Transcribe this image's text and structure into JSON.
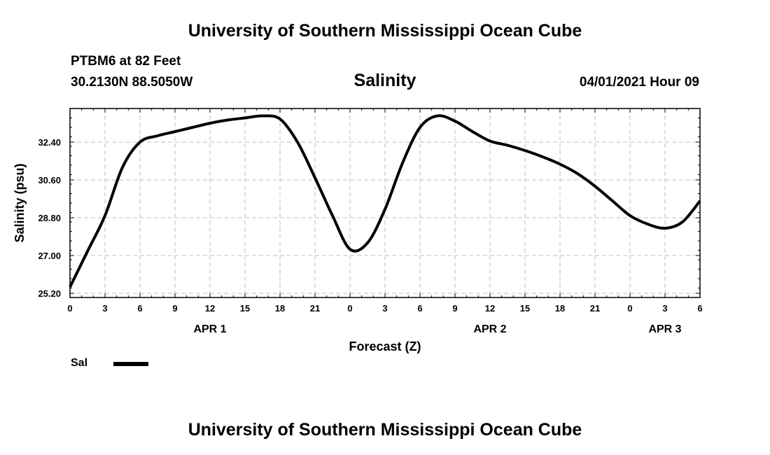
{
  "header": {
    "title": "University of Southern Mississippi Ocean Cube",
    "station": "PTBM6 at 82 Feet",
    "coords": "30.2130N  88.5050W",
    "chart_title": "Salinity",
    "timestamp": "04/01/2021 Hour 09"
  },
  "footer": {
    "title": "University of Southern Mississippi Ocean Cube"
  },
  "legend": {
    "label": "Sal",
    "color": "#000000"
  },
  "chart_data": {
    "type": "line",
    "title": "Salinity",
    "xlabel": "Forecast (Z)",
    "ylabel": "Salinity (psu)",
    "xlim": [
      0,
      54
    ],
    "ylim": [
      25.0,
      34.0
    ],
    "grid": true,
    "legend_position": "bottom-left",
    "x_ticks": [
      {
        "x": 0,
        "label": "0"
      },
      {
        "x": 3,
        "label": "3"
      },
      {
        "x": 6,
        "label": "6"
      },
      {
        "x": 9,
        "label": "9"
      },
      {
        "x": 12,
        "label": "12"
      },
      {
        "x": 15,
        "label": "15"
      },
      {
        "x": 18,
        "label": "18"
      },
      {
        "x": 21,
        "label": "21"
      },
      {
        "x": 24,
        "label": "0"
      },
      {
        "x": 27,
        "label": "3"
      },
      {
        "x": 30,
        "label": "6"
      },
      {
        "x": 33,
        "label": "9"
      },
      {
        "x": 36,
        "label": "12"
      },
      {
        "x": 39,
        "label": "15"
      },
      {
        "x": 42,
        "label": "18"
      },
      {
        "x": 45,
        "label": "21"
      },
      {
        "x": 48,
        "label": "0"
      },
      {
        "x": 51,
        "label": "3"
      },
      {
        "x": 54,
        "label": "6"
      }
    ],
    "y_ticks": [
      {
        "y": 25.2,
        "label": "25.20"
      },
      {
        "y": 27.0,
        "label": "27.00"
      },
      {
        "y": 28.8,
        "label": "28.80"
      },
      {
        "y": 30.6,
        "label": "30.60"
      },
      {
        "y": 32.4,
        "label": "32.40"
      }
    ],
    "date_labels": [
      {
        "x": 12,
        "label": "APR 1"
      },
      {
        "x": 36,
        "label": "APR 2"
      },
      {
        "x": 51,
        "label": "APR 3"
      }
    ],
    "series": [
      {
        "name": "Sal",
        "color": "#000000",
        "x": [
          0,
          1.5,
          3,
          4.5,
          6,
          7.5,
          9,
          10.5,
          12,
          13.5,
          15,
          16.5,
          18,
          19.5,
          21,
          22.5,
          24,
          25.5,
          27,
          28.5,
          30,
          31.5,
          33,
          34.5,
          36,
          37.5,
          39,
          40.5,
          42,
          43.5,
          45,
          46.5,
          48,
          49.5,
          51,
          52.5,
          54
        ],
        "values": [
          25.5,
          27.2,
          28.9,
          31.2,
          32.4,
          32.7,
          32.9,
          33.1,
          33.3,
          33.45,
          33.55,
          33.65,
          33.5,
          32.4,
          30.7,
          28.9,
          27.3,
          27.6,
          29.2,
          31.4,
          33.1,
          33.65,
          33.4,
          32.9,
          32.45,
          32.25,
          32.0,
          31.7,
          31.35,
          30.9,
          30.3,
          29.6,
          28.9,
          28.5,
          28.3,
          28.6,
          29.6
        ]
      }
    ]
  }
}
